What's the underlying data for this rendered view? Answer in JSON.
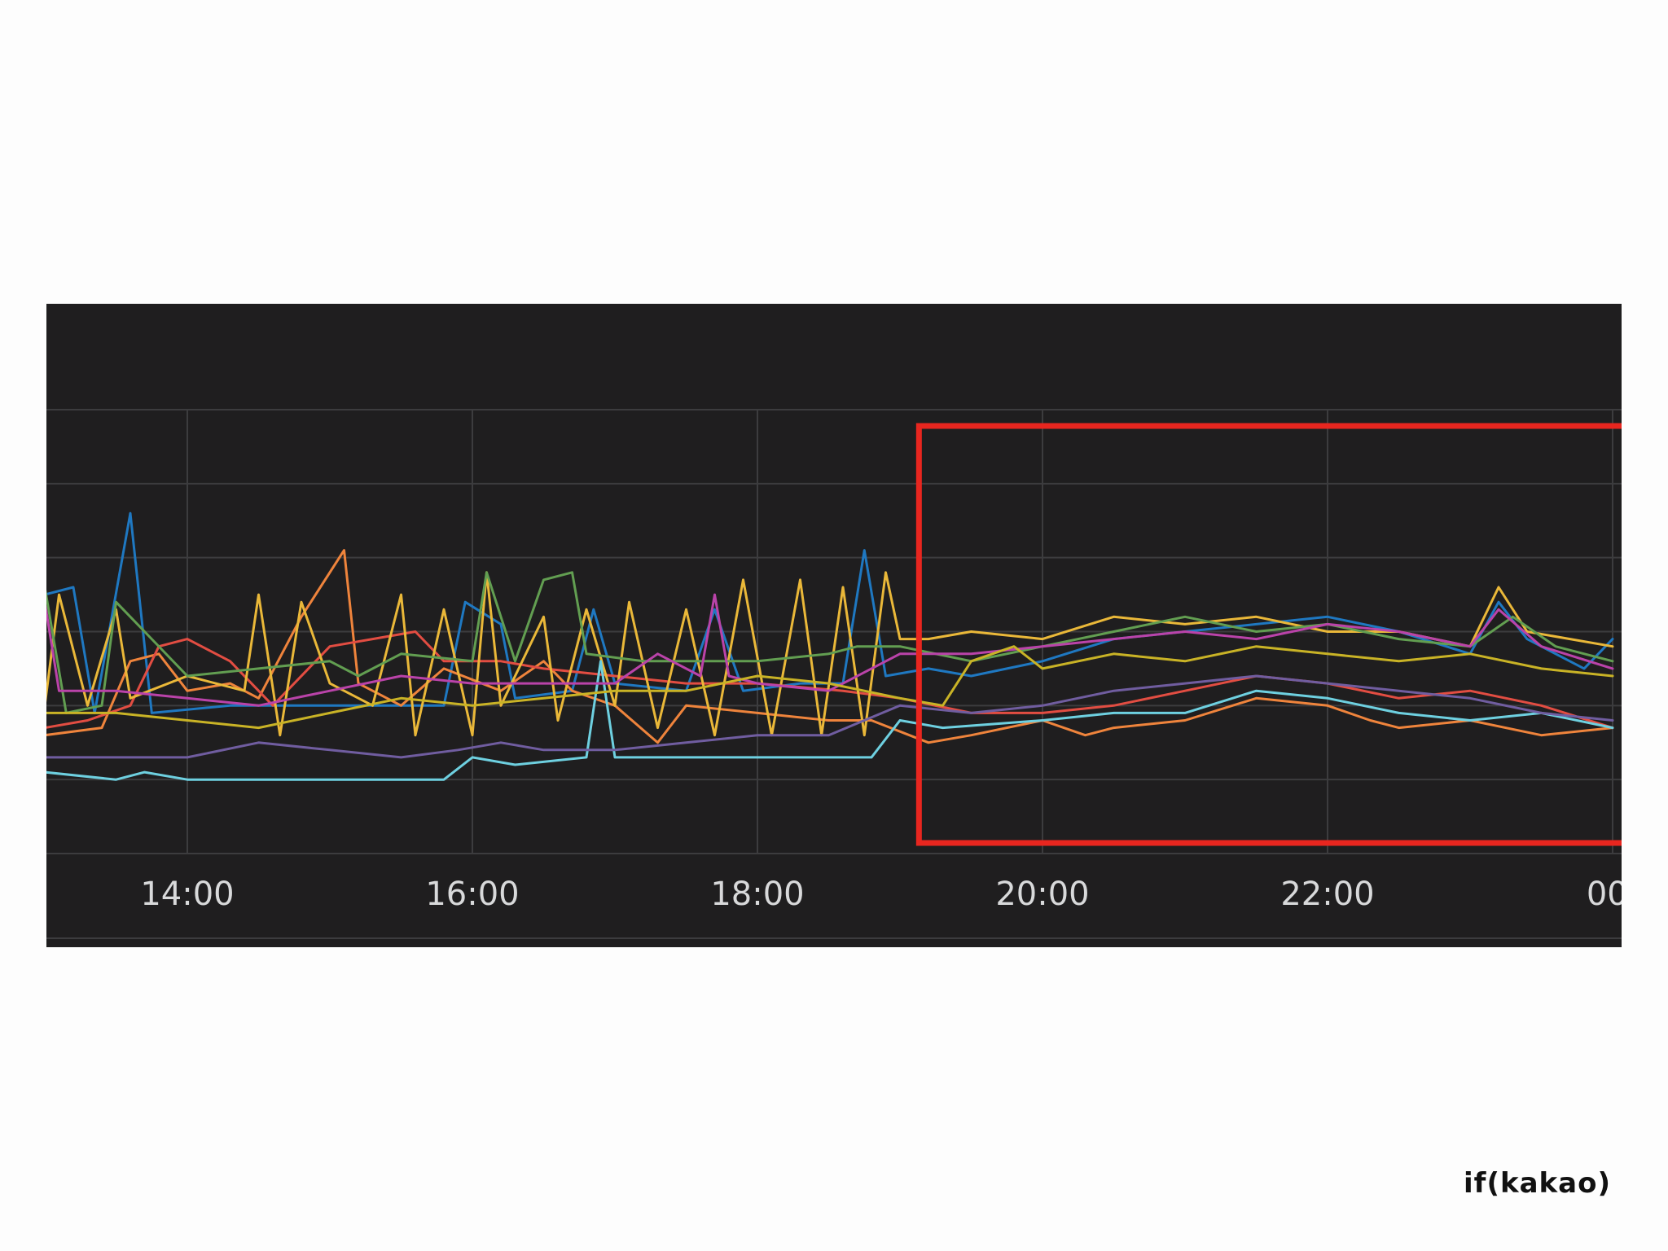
{
  "chart_data": {
    "type": "line",
    "title": "",
    "xlabel": "",
    "ylabel": "",
    "x_ticks": [
      "14:00",
      "16:00",
      "18:00",
      "20:00",
      "22:00",
      "00:"
    ],
    "x_start": "13:00",
    "x_end": "00:00",
    "ylim": [
      0,
      6
    ],
    "grid": true,
    "legend": "none",
    "highlight": {
      "x_range": [
        "19:08",
        "00:00"
      ],
      "color": "#e8261f"
    },
    "series": [
      {
        "color": "#1f78c1",
        "points": [
          [
            13.0,
            3.5
          ],
          [
            13.2,
            3.6
          ],
          [
            13.35,
            1.9
          ],
          [
            13.6,
            4.6
          ],
          [
            13.75,
            1.9
          ],
          [
            14.3,
            2.0
          ],
          [
            15.8,
            2.0
          ],
          [
            15.95,
            3.4
          ],
          [
            16.2,
            3.1
          ],
          [
            16.3,
            2.1
          ],
          [
            16.7,
            2.2
          ],
          [
            16.85,
            3.3
          ],
          [
            17.0,
            2.3
          ],
          [
            17.5,
            2.2
          ],
          [
            17.7,
            3.3
          ],
          [
            17.9,
            2.2
          ],
          [
            18.3,
            2.3
          ],
          [
            18.6,
            2.3
          ],
          [
            18.75,
            4.1
          ],
          [
            18.9,
            2.4
          ],
          [
            19.2,
            2.5
          ],
          [
            19.5,
            2.4
          ],
          [
            20.0,
            2.6
          ],
          [
            20.5,
            2.9
          ],
          [
            21.0,
            3.0
          ],
          [
            21.5,
            3.1
          ],
          [
            22.0,
            3.2
          ],
          [
            22.5,
            3.0
          ],
          [
            23.0,
            2.7
          ],
          [
            23.2,
            3.4
          ],
          [
            23.4,
            2.9
          ],
          [
            23.8,
            2.5
          ],
          [
            24.0,
            2.9
          ]
        ]
      },
      {
        "color": "#ef843c",
        "points": [
          [
            13.0,
            1.6
          ],
          [
            13.4,
            1.7
          ],
          [
            13.6,
            2.6
          ],
          [
            13.8,
            2.7
          ],
          [
            14.0,
            2.2
          ],
          [
            14.3,
            2.3
          ],
          [
            14.5,
            2.1
          ],
          [
            14.8,
            3.2
          ],
          [
            15.1,
            4.1
          ],
          [
            15.2,
            2.3
          ],
          [
            15.5,
            2.0
          ],
          [
            15.8,
            2.5
          ],
          [
            16.2,
            2.2
          ],
          [
            16.5,
            2.6
          ],
          [
            16.7,
            2.2
          ],
          [
            17.0,
            2.0
          ],
          [
            17.3,
            1.5
          ],
          [
            17.5,
            2.0
          ],
          [
            18.0,
            1.9
          ],
          [
            18.5,
            1.8
          ],
          [
            18.8,
            1.8
          ],
          [
            19.2,
            1.5
          ],
          [
            19.5,
            1.6
          ],
          [
            20.0,
            1.8
          ],
          [
            20.3,
            1.6
          ],
          [
            20.5,
            1.7
          ],
          [
            21.0,
            1.8
          ],
          [
            21.5,
            2.1
          ],
          [
            22.0,
            2.0
          ],
          [
            22.3,
            1.8
          ],
          [
            22.5,
            1.7
          ],
          [
            23.0,
            1.8
          ],
          [
            23.5,
            1.6
          ],
          [
            24.0,
            1.7
          ]
        ]
      },
      {
        "color": "#e24d42",
        "points": [
          [
            13.0,
            1.7
          ],
          [
            13.3,
            1.8
          ],
          [
            13.6,
            2.0
          ],
          [
            13.8,
            2.8
          ],
          [
            14.0,
            2.9
          ],
          [
            14.3,
            2.6
          ],
          [
            14.6,
            2.0
          ],
          [
            15.0,
            2.8
          ],
          [
            15.3,
            2.9
          ],
          [
            15.6,
            3.0
          ],
          [
            15.8,
            2.6
          ],
          [
            16.2,
            2.6
          ],
          [
            16.5,
            2.5
          ],
          [
            17.0,
            2.4
          ],
          [
            17.5,
            2.3
          ],
          [
            18.0,
            2.3
          ],
          [
            18.6,
            2.2
          ],
          [
            19.0,
            2.1
          ],
          [
            19.5,
            1.9
          ],
          [
            20.0,
            1.9
          ],
          [
            20.5,
            2.0
          ],
          [
            21.0,
            2.2
          ],
          [
            21.5,
            2.4
          ],
          [
            22.0,
            2.3
          ],
          [
            22.5,
            2.1
          ],
          [
            23.0,
            2.2
          ],
          [
            23.5,
            2.0
          ],
          [
            24.0,
            1.7
          ]
        ]
      },
      {
        "color": "#eab839",
        "points": [
          [
            13.0,
            2.0
          ],
          [
            13.1,
            3.5
          ],
          [
            13.3,
            2.0
          ],
          [
            13.5,
            3.3
          ],
          [
            13.6,
            2.1
          ],
          [
            14.0,
            2.4
          ],
          [
            14.4,
            2.2
          ],
          [
            14.5,
            3.5
          ],
          [
            14.65,
            1.6
          ],
          [
            14.8,
            3.4
          ],
          [
            15.0,
            2.3
          ],
          [
            15.3,
            2.0
          ],
          [
            15.5,
            3.5
          ],
          [
            15.6,
            1.6
          ],
          [
            15.8,
            3.3
          ],
          [
            16.0,
            1.6
          ],
          [
            16.1,
            3.8
          ],
          [
            16.2,
            2.0
          ],
          [
            16.5,
            3.2
          ],
          [
            16.6,
            1.8
          ],
          [
            16.8,
            3.3
          ],
          [
            17.0,
            2.0
          ],
          [
            17.1,
            3.4
          ],
          [
            17.3,
            1.7
          ],
          [
            17.5,
            3.3
          ],
          [
            17.7,
            1.6
          ],
          [
            17.9,
            3.7
          ],
          [
            18.1,
            1.6
          ],
          [
            18.3,
            3.7
          ],
          [
            18.45,
            1.6
          ],
          [
            18.6,
            3.6
          ],
          [
            18.75,
            1.6
          ],
          [
            18.9,
            3.8
          ],
          [
            19.0,
            2.9
          ],
          [
            19.2,
            2.9
          ],
          [
            19.5,
            3.0
          ],
          [
            20.0,
            2.9
          ],
          [
            20.5,
            3.2
          ],
          [
            21.0,
            3.1
          ],
          [
            21.5,
            3.2
          ],
          [
            22.0,
            3.0
          ],
          [
            22.5,
            3.0
          ],
          [
            23.0,
            2.8
          ],
          [
            23.2,
            3.6
          ],
          [
            23.4,
            3.0
          ],
          [
            24.0,
            2.8
          ]
        ]
      },
      {
        "color": "#629e51",
        "points": [
          [
            13.0,
            3.6
          ],
          [
            13.15,
            1.9
          ],
          [
            13.4,
            2.0
          ],
          [
            13.5,
            3.4
          ],
          [
            13.7,
            3.0
          ],
          [
            14.0,
            2.4
          ],
          [
            14.5,
            2.5
          ],
          [
            15.0,
            2.6
          ],
          [
            15.2,
            2.4
          ],
          [
            15.5,
            2.7
          ],
          [
            16.0,
            2.6
          ],
          [
            16.1,
            3.8
          ],
          [
            16.3,
            2.6
          ],
          [
            16.5,
            3.7
          ],
          [
            16.7,
            3.8
          ],
          [
            16.8,
            2.7
          ],
          [
            17.2,
            2.6
          ],
          [
            17.5,
            2.6
          ],
          [
            18.0,
            2.6
          ],
          [
            18.5,
            2.7
          ],
          [
            18.7,
            2.8
          ],
          [
            19.0,
            2.8
          ],
          [
            19.5,
            2.6
          ],
          [
            20.0,
            2.8
          ],
          [
            20.5,
            3.0
          ],
          [
            21.0,
            3.2
          ],
          [
            21.5,
            3.0
          ],
          [
            22.0,
            3.1
          ],
          [
            22.5,
            2.9
          ],
          [
            23.0,
            2.8
          ],
          [
            23.3,
            3.2
          ],
          [
            23.6,
            2.8
          ],
          [
            24.0,
            2.6
          ]
        ]
      },
      {
        "color": "#6ed0e0",
        "points": [
          [
            13.0,
            1.1
          ],
          [
            13.5,
            1.0
          ],
          [
            13.7,
            1.1
          ],
          [
            14.0,
            1.0
          ],
          [
            14.3,
            1.0
          ],
          [
            14.6,
            1.0
          ],
          [
            15.0,
            1.0
          ],
          [
            15.5,
            1.0
          ],
          [
            15.8,
            1.0
          ],
          [
            16.0,
            1.3
          ],
          [
            16.3,
            1.2
          ],
          [
            16.8,
            1.3
          ],
          [
            16.9,
            2.6
          ],
          [
            17.0,
            1.3
          ],
          [
            17.5,
            1.3
          ],
          [
            17.9,
            1.3
          ],
          [
            18.3,
            1.3
          ],
          [
            18.8,
            1.3
          ],
          [
            19.0,
            1.8
          ],
          [
            19.3,
            1.7
          ],
          [
            20.0,
            1.8
          ],
          [
            20.5,
            1.9
          ],
          [
            21.0,
            1.9
          ],
          [
            21.5,
            2.2
          ],
          [
            22.0,
            2.1
          ],
          [
            22.5,
            1.9
          ],
          [
            23.0,
            1.8
          ],
          [
            23.5,
            1.9
          ],
          [
            24.0,
            1.7
          ]
        ]
      },
      {
        "color": "#ba43a9",
        "points": [
          [
            13.0,
            3.4
          ],
          [
            13.1,
            2.2
          ],
          [
            13.5,
            2.2
          ],
          [
            14.0,
            2.1
          ],
          [
            14.5,
            2.0
          ],
          [
            15.0,
            2.2
          ],
          [
            15.5,
            2.4
          ],
          [
            16.0,
            2.3
          ],
          [
            16.5,
            2.3
          ],
          [
            17.0,
            2.3
          ],
          [
            17.3,
            2.7
          ],
          [
            17.6,
            2.4
          ],
          [
            17.7,
            3.5
          ],
          [
            17.8,
            2.4
          ],
          [
            18.0,
            2.3
          ],
          [
            18.5,
            2.2
          ],
          [
            19.0,
            2.7
          ],
          [
            19.5,
            2.7
          ],
          [
            20.0,
            2.8
          ],
          [
            20.5,
            2.9
          ],
          [
            21.0,
            3.0
          ],
          [
            21.5,
            2.9
          ],
          [
            22.0,
            3.1
          ],
          [
            22.5,
            3.0
          ],
          [
            23.0,
            2.8
          ],
          [
            23.2,
            3.3
          ],
          [
            23.5,
            2.8
          ],
          [
            24.0,
            2.5
          ]
        ]
      },
      {
        "color": "#705da0",
        "points": [
          [
            13.0,
            1.3
          ],
          [
            13.5,
            1.3
          ],
          [
            14.0,
            1.3
          ],
          [
            14.5,
            1.5
          ],
          [
            15.0,
            1.4
          ],
          [
            15.5,
            1.3
          ],
          [
            15.9,
            1.4
          ],
          [
            16.2,
            1.5
          ],
          [
            16.5,
            1.4
          ],
          [
            17.0,
            1.4
          ],
          [
            17.5,
            1.5
          ],
          [
            18.0,
            1.6
          ],
          [
            18.5,
            1.6
          ],
          [
            19.0,
            2.0
          ],
          [
            19.5,
            1.9
          ],
          [
            20.0,
            2.0
          ],
          [
            20.5,
            2.2
          ],
          [
            21.0,
            2.3
          ],
          [
            21.5,
            2.4
          ],
          [
            22.0,
            2.3
          ],
          [
            22.5,
            2.2
          ],
          [
            23.0,
            2.1
          ],
          [
            23.5,
            1.9
          ],
          [
            24.0,
            1.8
          ]
        ]
      },
      {
        "color": "#c9b326",
        "points": [
          [
            13.0,
            1.9
          ],
          [
            13.5,
            1.9
          ],
          [
            14.0,
            1.8
          ],
          [
            14.5,
            1.7
          ],
          [
            15.0,
            1.9
          ],
          [
            15.5,
            2.1
          ],
          [
            16.0,
            2.0
          ],
          [
            16.5,
            2.1
          ],
          [
            17.0,
            2.2
          ],
          [
            17.5,
            2.2
          ],
          [
            18.0,
            2.4
          ],
          [
            18.5,
            2.3
          ],
          [
            19.0,
            2.1
          ],
          [
            19.3,
            2.0
          ],
          [
            19.5,
            2.6
          ],
          [
            19.8,
            2.8
          ],
          [
            20.0,
            2.5
          ],
          [
            20.5,
            2.7
          ],
          [
            21.0,
            2.6
          ],
          [
            21.5,
            2.8
          ],
          [
            22.0,
            2.7
          ],
          [
            22.5,
            2.6
          ],
          [
            23.0,
            2.7
          ],
          [
            23.5,
            2.5
          ],
          [
            24.0,
            2.4
          ]
        ]
      }
    ]
  },
  "branding": {
    "logo_text": "if(kakao)"
  }
}
